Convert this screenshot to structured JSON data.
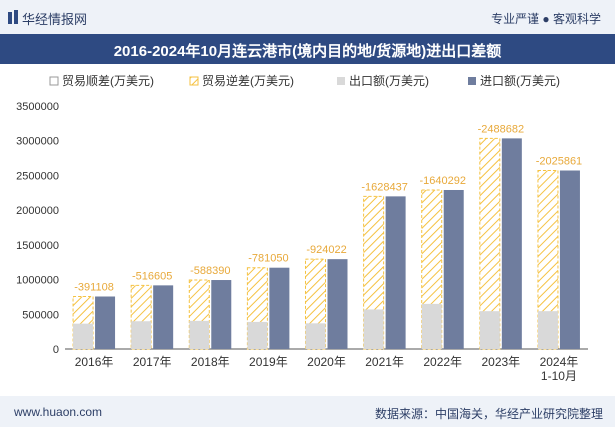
{
  "header": {
    "brand": "华经情报网",
    "slogan": "专业严谨 ● 客观科学",
    "title": "2016-2024年10月连云港市(境内目的地/货源地)进出口差额"
  },
  "footer": {
    "site": "www.huaon.com",
    "source": "数据来源：中国海关，华经产业研究院整理"
  },
  "colors": {
    "export": "#d9d9d9",
    "import": "#6f7d9e",
    "deficit_stroke": "#f5c242",
    "title_bg": "#2e4a82",
    "label": "#e8a93a"
  },
  "chart_data": {
    "type": "bar",
    "categories": [
      "2016年",
      "2017年",
      "2018年",
      "2019年",
      "2020年",
      "2021年",
      "2022年",
      "2023年",
      "2024年 1-10月"
    ],
    "series": [
      {
        "name": "贸易顺差(万美元)",
        "values": [
          0,
          0,
          0,
          0,
          0,
          0,
          0,
          0,
          0
        ]
      },
      {
        "name": "贸易逆差(万美元)",
        "values": [
          -391108,
          -516605,
          -588390,
          -781050,
          -924022,
          -1628437,
          -1640292,
          -2488682,
          -2025861
        ]
      },
      {
        "name": "出口额(万美元)",
        "values": [
          365000,
          400000,
          405000,
          390000,
          370000,
          570000,
          650000,
          545000,
          545000
        ]
      },
      {
        "name": "进口额(万美元)",
        "values": [
          756108,
          916605,
          993390,
          1171050,
          1294022,
          2198437,
          2290292,
          3033682,
          2570861
        ]
      }
    ],
    "data_labels": [
      "-391108",
      "-516605",
      "-588390",
      "-781050",
      "-924022",
      "-1628437",
      "-1640292",
      "-2488682",
      "-2025861"
    ],
    "yticks": [
      "0",
      "500000",
      "1000000",
      "1500000",
      "2000000",
      "2500000",
      "3000000",
      "3500000"
    ],
    "ylim": [
      0,
      3500000
    ],
    "legend_position": "top",
    "grid": false
  }
}
